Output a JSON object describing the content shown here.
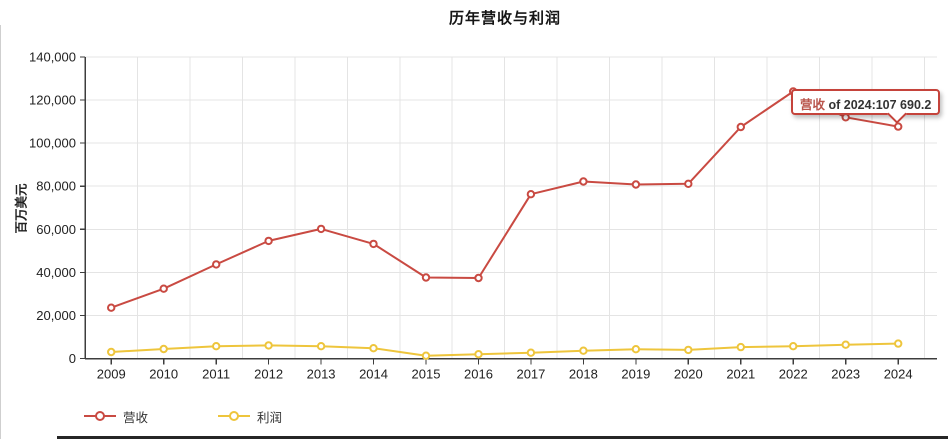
{
  "title": "历年营收与利润",
  "tooltip": {
    "series_label": "营收",
    "rest": " of 2024:107,690.2",
    "year": "2024",
    "value": "107,690.2"
  },
  "colors": {
    "revenue": "#c94a42",
    "profit": "#eec53c",
    "tooltip_border": "#c5433b",
    "tooltip_series_text": "#b9544b",
    "axis": "#3d3d3d",
    "grid": "#e4e4e4"
  },
  "chart_data": {
    "type": "line",
    "title": "历年营收与利润",
    "x": [
      "2009",
      "2010",
      "2011",
      "2012",
      "2013",
      "2014",
      "2015",
      "2016",
      "2017",
      "2018",
      "2019",
      "2020",
      "2021",
      "2022",
      "2023",
      "2024"
    ],
    "series": [
      {
        "key": "revenue",
        "name": "营收",
        "color": "#c94a42",
        "values": [
          23600,
          32400,
          43700,
          54600,
          60200,
          53200,
          37600,
          37400,
          76300,
          82200,
          80800,
          81100,
          107500,
          124000,
          112000,
          107690.2
        ]
      },
      {
        "key": "profit",
        "name": "利润",
        "color": "#eec53c",
        "values": [
          3000,
          4400,
          5700,
          6100,
          5700,
          4800,
          1300,
          2000,
          2700,
          3600,
          4300,
          4000,
          5300,
          5700,
          6400,
          6900
        ]
      }
    ],
    "xlabel": "",
    "ylabel": "百万美元",
    "ylim": [
      0,
      140000
    ],
    "yticks": [
      0,
      20000,
      40000,
      60000,
      80000,
      100000,
      120000,
      140000
    ],
    "grid": true,
    "legend_position": "bottom-left",
    "marker": "hollow-circle"
  }
}
